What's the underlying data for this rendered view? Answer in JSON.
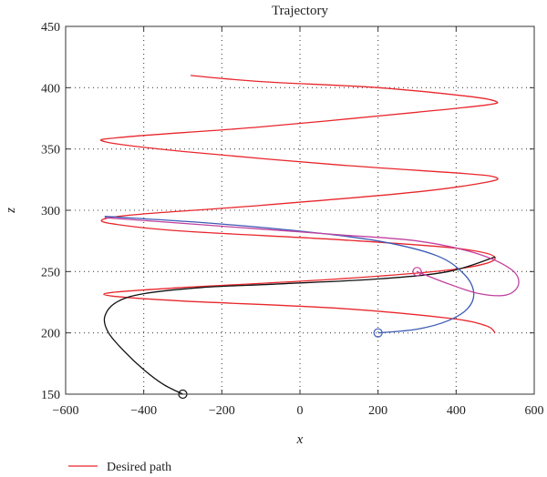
{
  "chart_data": {
    "type": "line",
    "title": "Trajectory",
    "xlabel": "x",
    "ylabel": "z",
    "xlim": [
      -600,
      600
    ],
    "ylim": [
      150,
      450
    ],
    "xticks": [
      -600,
      -400,
      -200,
      0,
      200,
      400,
      600
    ],
    "yticks": [
      150,
      200,
      250,
      300,
      350,
      400,
      450
    ],
    "xtick_labels": [
      "−600",
      "−400",
      "−200",
      "0",
      "200",
      "400",
      "600"
    ],
    "ytick_labels": [
      "150",
      "200",
      "250",
      "300",
      "350",
      "400",
      "450"
    ],
    "grid": "dotted",
    "legend_position": "bottom-left",
    "colors": {
      "desired": "#e8262c",
      "black_path": "#111111",
      "blue_path": "#3d5bb5",
      "magenta_path": "#c2419e",
      "axes": "#333333",
      "grid": "#444444"
    },
    "series": [
      {
        "name": "Desired path",
        "color": "#e8262c",
        "points": [
          [
            500,
            200
          ],
          [
            475,
            206
          ],
          [
            380,
            212
          ],
          [
            100,
            220
          ],
          [
            -300,
            226
          ],
          [
            -480,
            230
          ],
          [
            -480,
            233
          ],
          [
            -300,
            237
          ],
          [
            100,
            244
          ],
          [
            400,
            252
          ],
          [
            500,
            261
          ],
          [
            400,
            269
          ],
          [
            100,
            276
          ],
          [
            -300,
            283
          ],
          [
            -480,
            289
          ],
          [
            -500,
            293
          ],
          [
            -400,
            297
          ],
          [
            -100,
            304
          ],
          [
            300,
            315
          ],
          [
            480,
            323
          ],
          [
            500,
            327
          ],
          [
            420,
            330
          ],
          [
            100,
            337
          ],
          [
            -300,
            348
          ],
          [
            -500,
            356
          ],
          [
            -440,
            360
          ],
          [
            -100,
            368
          ],
          [
            300,
            380
          ],
          [
            480,
            386
          ],
          [
            500,
            389
          ],
          [
            430,
            393
          ],
          [
            200,
            400
          ],
          [
            -100,
            405
          ],
          [
            -280,
            410
          ]
        ]
      },
      {
        "color": "#111111",
        "marker_start": "circle",
        "points": [
          [
            -300,
            150
          ],
          [
            -350,
            158
          ],
          [
            -400,
            170
          ],
          [
            -450,
            185
          ],
          [
            -490,
            200
          ],
          [
            -500,
            213
          ],
          [
            -470,
            225
          ],
          [
            -400,
            232
          ],
          [
            -250,
            237
          ],
          [
            -50,
            240
          ],
          [
            200,
            244
          ],
          [
            380,
            250
          ],
          [
            500,
            262
          ]
        ]
      },
      {
        "color": "#3d5bb5",
        "marker_start": "circle",
        "points": [
          [
            200,
            200
          ],
          [
            300,
            203
          ],
          [
            380,
            210
          ],
          [
            430,
            220
          ],
          [
            445,
            233
          ],
          [
            420,
            248
          ],
          [
            350,
            263
          ],
          [
            200,
            275
          ],
          [
            0,
            283
          ],
          [
            -250,
            290
          ],
          [
            -500,
            295
          ]
        ]
      },
      {
        "color": "#c2419e",
        "marker_start": "circle",
        "points": [
          [
            300,
            250
          ],
          [
            380,
            240
          ],
          [
            460,
            232
          ],
          [
            530,
            231
          ],
          [
            560,
            240
          ],
          [
            540,
            252
          ],
          [
            450,
            265
          ],
          [
            300,
            275
          ],
          [
            100,
            280
          ],
          [
            -200,
            287
          ],
          [
            -500,
            294
          ]
        ]
      }
    ]
  }
}
